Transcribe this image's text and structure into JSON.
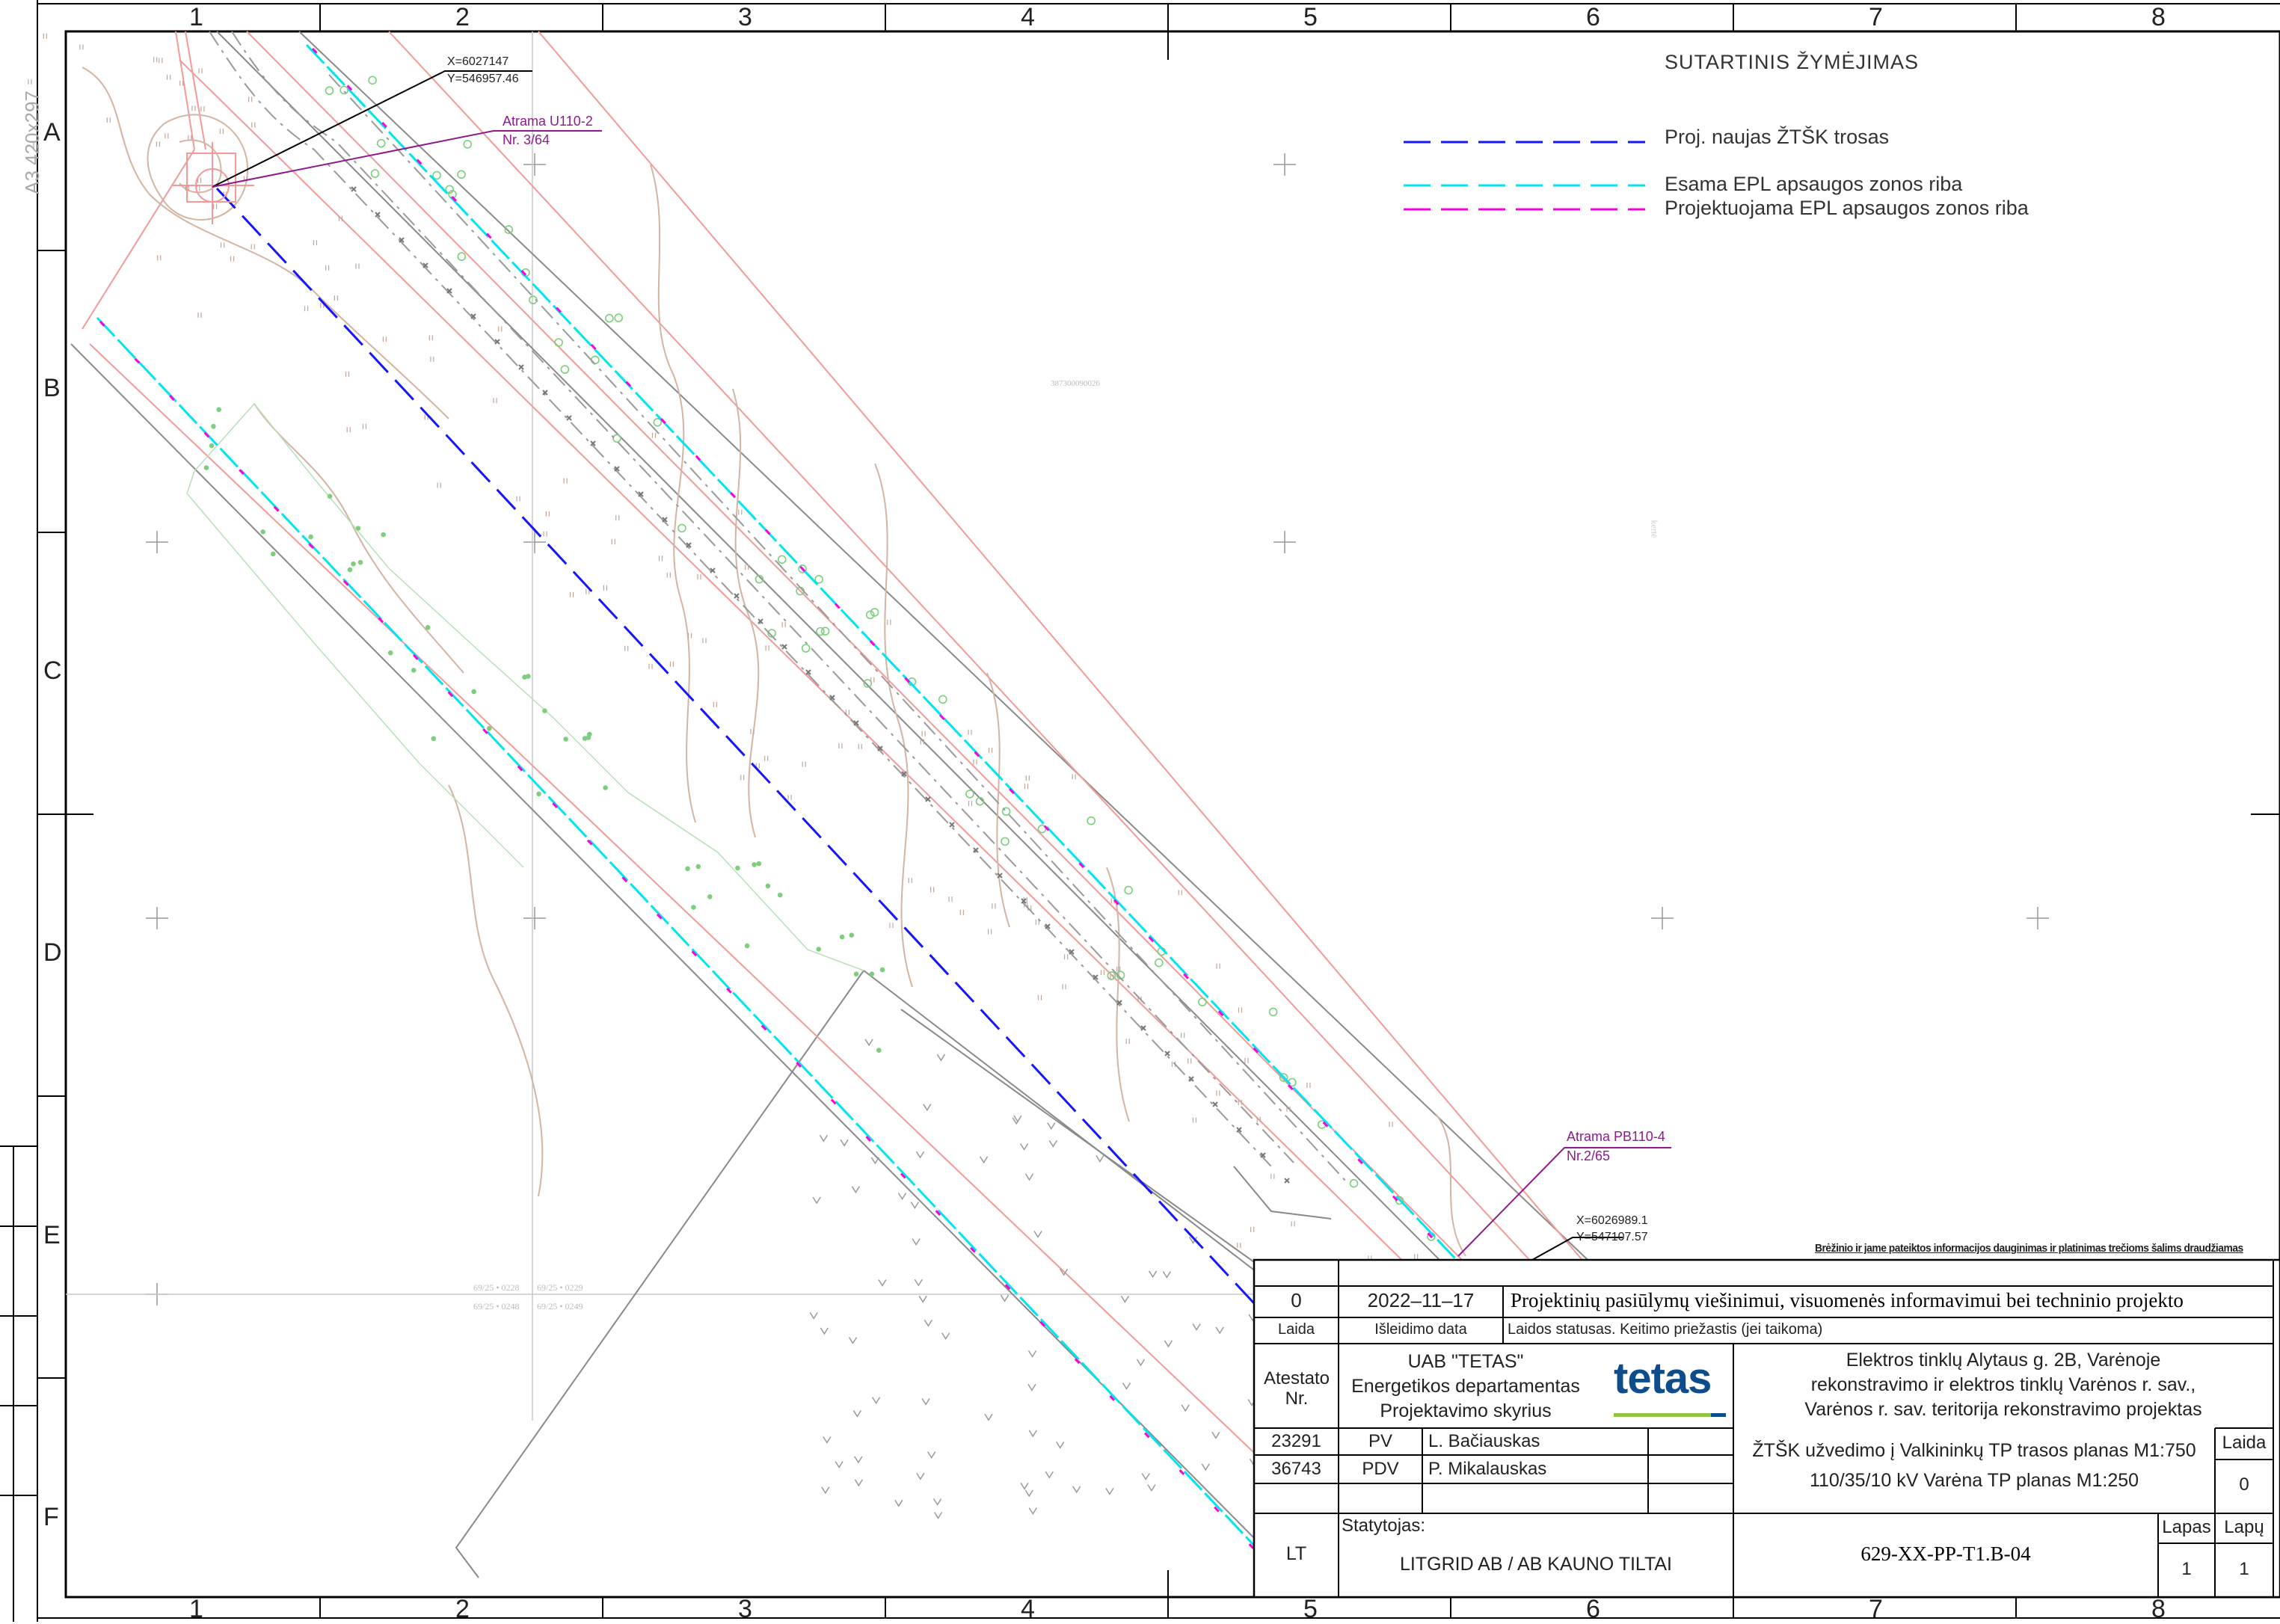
{
  "sheet_format": "A3 420x297",
  "grid": {
    "columns": [
      "1",
      "2",
      "3",
      "4",
      "5",
      "6",
      "7",
      "8"
    ],
    "rows": [
      "A",
      "B",
      "C",
      "D",
      "E",
      "F"
    ]
  },
  "legend": {
    "title": "SUTARTINIS ŽYMĖJIMAS",
    "items": [
      {
        "label": "Proj. naujas ŽTŠK trosas",
        "color": "#1515ff"
      },
      {
        "label": "Esama EPL apsaugos zonos riba",
        "color": "#00e5f0"
      },
      {
        "label": "Projektuojama EPL apsaugos zonos riba",
        "color": "#ff00dd"
      }
    ]
  },
  "annotations": {
    "coord_top": {
      "x": "X=6027147",
      "y": "Y=546957.46"
    },
    "support_top": {
      "name": "Atrama U110-2",
      "nr": "Nr. 3/64"
    },
    "support_bottom": {
      "name": "Atrama PB110-4",
      "nr": "Nr.2/65"
    },
    "coord_bottom": {
      "x": "X=6026989.1",
      "y": "Y=547107.57"
    },
    "parcel_id": "387300090026",
    "faint_vertical": "kertė",
    "parcels": [
      "69/25 • 0228",
      "69/25 • 0229",
      "69/25 • 0248",
      "69/25 • 0249"
    ]
  },
  "title_block": {
    "notice": "Brėžinio ir jame pateiktos informacijos dauginimas ir platinimas trečioms šalims draudžiamas",
    "revision": {
      "laida": "0",
      "date": "2022–11–17",
      "status": "Projektinių pasiūlymų viešinimui, visuomenės informavimui bei techninio projekto"
    },
    "headers": {
      "laida": "Laida",
      "date": "Išleidimo data",
      "status": "Laidos statusas. Keitimo priežastis (jei taikoma)"
    },
    "atestato": "Atestato Nr.",
    "company": [
      "UAB \"TETAS\"",
      "Energetikos departamentas",
      "Projektavimo skyrius"
    ],
    "logo_text": "tetas",
    "project_title": [
      "Elektros tinklų Alytaus g. 2B, Varėnoje",
      "rekonstravimo ir elektros tinklų Varėnos r. sav.,",
      "Varėnos r. sav. teritorija rekonstravimo projektas"
    ],
    "staff": [
      {
        "nr": "23291",
        "role": "PV",
        "name": "L. Bačiauskas"
      },
      {
        "nr": "36743",
        "role": "PDV",
        "name": "P. Mikalauskas"
      }
    ],
    "drawing_title": [
      "ŽTŠK užvedimo į Valkininkų TP trasos planas M1:750",
      "110/35/10 kV Varėna TP planas M1:250"
    ],
    "laida_label": "Laida",
    "laida_value": "0",
    "country": "LT",
    "statytojas_label": "Statytojas:",
    "client": "LITGRID AB / AB KAUNO TILTAI",
    "doc_number": "629-XX-PP-T1.B-04",
    "lapas_label": "Lapas",
    "lapu_label": "Lapų",
    "lapas_value": "1",
    "lapu_value": "1"
  },
  "colors": {
    "frame": "#000000",
    "terrain": "#d8b8a8",
    "redline": "#f08a8a",
    "vegetation": "#5cc55c",
    "purple": "#8e1a8e",
    "road": "#8a8a8a",
    "logo": "#0f4c8c",
    "logo_accent": "#8ec63f"
  }
}
